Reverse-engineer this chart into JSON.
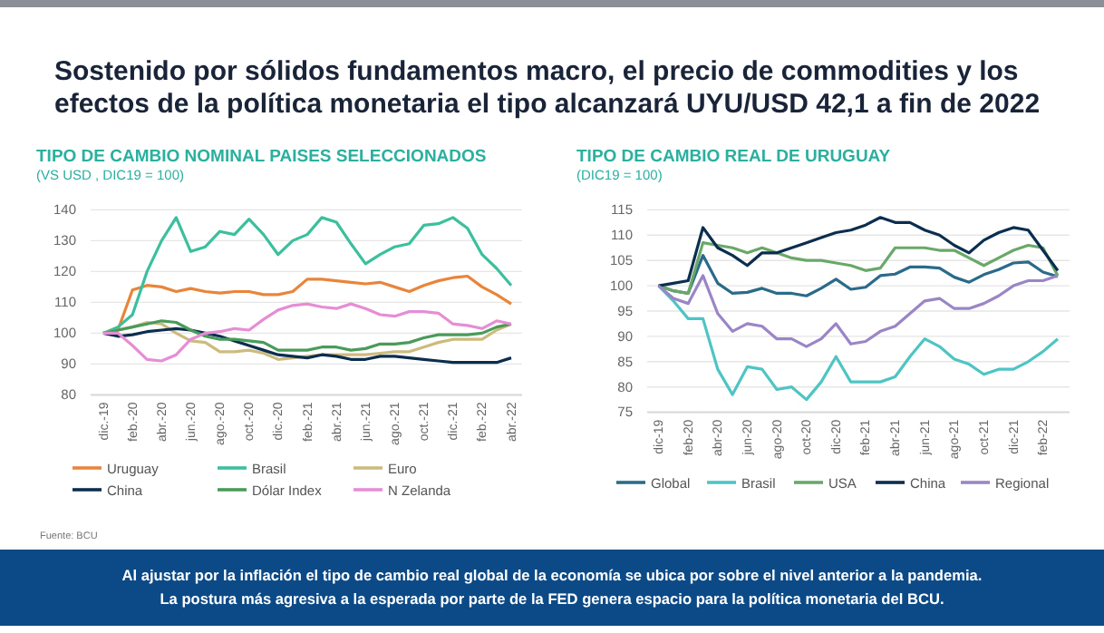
{
  "chart_data": [
    {
      "type": "line",
      "title": "TIPO DE CAMBIO NOMINAL PAISES SELECCIONADOS",
      "subtitle": "(VS USD , DIC19 = 100)",
      "annotations": [
        "Sostenido por sólidos fundamentos macro, el precio de commodities y los efectos de la política monetaria el tipo alcanzará UYU/USD 42,1 a fin de 2022",
        "Fuente: BCU"
      ],
      "categories": [
        "dic.-19",
        null,
        "feb.-20",
        null,
        "abr.-20",
        null,
        "jun.-20",
        null,
        "ago.-20",
        null,
        "oct.-20",
        null,
        "dic.-20",
        null,
        "feb.-21",
        null,
        "abr.-21",
        null,
        "jun.-21",
        null,
        "ago.-21",
        null,
        "oct.-21",
        null,
        "dic.-21",
        null,
        "feb.-22",
        null,
        "abr.-22"
      ],
      "ylim": [
        80,
        140
      ],
      "yticks": [
        80,
        90,
        100,
        110,
        120,
        130,
        140
      ],
      "grid": "y",
      "legend": "bottom",
      "line_style": "solid",
      "marker": "none",
      "series": [
        {
          "name": "Uruguay",
          "color": "#e8853a",
          "values": [
            100,
            101,
            114,
            115.5,
            115,
            113.5,
            114.5,
            113.5,
            113,
            113.5,
            113.5,
            112.5,
            112.5,
            113.5,
            117.5,
            117.5,
            117,
            116.5,
            116,
            116.5,
            115,
            113.5,
            115.5,
            117,
            118,
            118.5,
            115,
            112.5,
            109.5
          ]
        },
        {
          "name": "Brasil",
          "color": "#3bbf9c",
          "values": [
            100,
            102,
            106,
            120,
            130,
            137.5,
            126.5,
            128,
            133,
            132,
            137,
            132,
            125.5,
            130,
            132,
            137.5,
            136,
            129,
            122.5,
            125.5,
            128,
            129,
            135,
            135.5,
            137.5,
            134,
            125.5,
            121,
            115.5
          ]
        },
        {
          "name": "Euro",
          "color": "#cdbb7e",
          "values": [
            100,
            101,
            102,
            103.5,
            103,
            100,
            97.5,
            97,
            94,
            94,
            94.5,
            93.5,
            91.5,
            92,
            92.5,
            93,
            93,
            93,
            93,
            93.5,
            94,
            94,
            95.5,
            97,
            98,
            98,
            98,
            101,
            103
          ]
        },
        {
          "name": "China",
          "color": "#0b2e4f",
          "values": [
            100,
            99,
            99.5,
            100.5,
            101,
            101.5,
            101,
            100,
            99,
            97.5,
            96,
            94.5,
            93,
            92.5,
            92,
            93,
            92.5,
            91.5,
            91.5,
            92.5,
            92.5,
            92,
            91.5,
            91,
            90.5,
            90.5,
            90.5,
            90.5,
            92
          ]
        },
        {
          "name": "Dólar Index",
          "color": "#4a9a5a",
          "values": [
            100,
            101,
            102,
            103,
            104,
            103.5,
            101,
            99,
            98,
            98,
            97.5,
            97,
            94.5,
            94.5,
            94.5,
            95.5,
            95.5,
            94.5,
            95,
            96.5,
            96.5,
            97,
            98.5,
            99.5,
            99.5,
            99.5,
            100,
            102,
            103
          ]
        },
        {
          "name": "N Zelanda",
          "color": "#e58ed6",
          "values": [
            100,
            100,
            96,
            91.5,
            91,
            93,
            98,
            100,
            100.5,
            101.5,
            101,
            104.5,
            107.5,
            109,
            109.5,
            108.5,
            108,
            109.5,
            108,
            106,
            105.5,
            107,
            107,
            106.5,
            103,
            102.5,
            101.5,
            104,
            103
          ]
        }
      ]
    },
    {
      "type": "line",
      "title": "TIPO DE CAMBIO REAL DE URUGUAY",
      "subtitle": "(DIC19 = 100)",
      "annotations": [
        "Al ajustar por la inflación el tipo de cambio real global de la economía se ubica por sobre el nivel anterior a la pandemia.",
        "La postura más agresiva a la esperada por parte de la FED genera espacio para la política monetaria del BCU."
      ],
      "categories": [
        "dic-19",
        null,
        "feb-20",
        null,
        "abr-20",
        null,
        "jun-20",
        null,
        "ago-20",
        null,
        "oct-20",
        null,
        "dic-20",
        null,
        "feb-21",
        null,
        "abr-21",
        null,
        "jun-21",
        null,
        "ago-21",
        null,
        "oct-21",
        null,
        "dic-21",
        null,
        "feb-22",
        null
      ],
      "ylim": [
        75,
        115
      ],
      "yticks": [
        75,
        80,
        85,
        90,
        95,
        100,
        105,
        110,
        115
      ],
      "grid": "y",
      "legend": "bottom",
      "line_style": "solid",
      "marker": "none",
      "series": [
        {
          "name": "Global",
          "color": "#2a6a8a",
          "values": [
            100,
            99,
            98.5,
            106,
            100.5,
            98.5,
            98.7,
            99.5,
            98.5,
            98.5,
            98,
            99.5,
            101.3,
            99.3,
            99.7,
            102,
            102.3,
            103.7,
            103.7,
            103.5,
            101.7,
            100.7,
            102.2,
            103.2,
            104.5,
            104.7,
            102.7,
            101.8
          ]
        },
        {
          "name": "Brasil",
          "color": "#4fc4c4",
          "values": [
            100,
            97,
            93.5,
            93.5,
            83.5,
            78.5,
            84,
            83.5,
            79.5,
            80,
            77.5,
            81,
            86,
            81,
            81,
            81,
            82,
            86,
            89.5,
            88,
            85.5,
            84.5,
            82.5,
            83.5,
            83.5,
            85,
            87,
            89.5
          ]
        },
        {
          "name": "USA",
          "color": "#6aa86a",
          "values": [
            100,
            99,
            98.5,
            108.5,
            108,
            107.5,
            106.5,
            107.5,
            106.5,
            105.5,
            105,
            105,
            104.5,
            104,
            103,
            103.5,
            107.5,
            107.5,
            107.5,
            107,
            107,
            105.5,
            104,
            105.5,
            107,
            108,
            107.5,
            102
          ]
        },
        {
          "name": "China",
          "color": "#0b2e4f",
          "values": [
            100,
            100.5,
            101,
            111.5,
            107.5,
            106,
            104,
            106.5,
            106.5,
            107.5,
            108.5,
            109.5,
            110.5,
            111,
            112,
            113.5,
            112.5,
            112.5,
            111,
            110,
            108,
            106.5,
            109,
            110.5,
            111.5,
            111,
            107,
            103
          ]
        },
        {
          "name": "Regional",
          "color": "#9a86c6",
          "values": [
            100,
            97.5,
            96.5,
            102,
            94.5,
            91,
            92.5,
            92,
            89.5,
            89.5,
            88,
            89.5,
            92.5,
            88.5,
            89,
            91,
            92,
            94.5,
            97,
            97.5,
            95.5,
            95.5,
            96.5,
            98,
            100,
            101,
            101,
            102
          ]
        }
      ]
    }
  ]
}
